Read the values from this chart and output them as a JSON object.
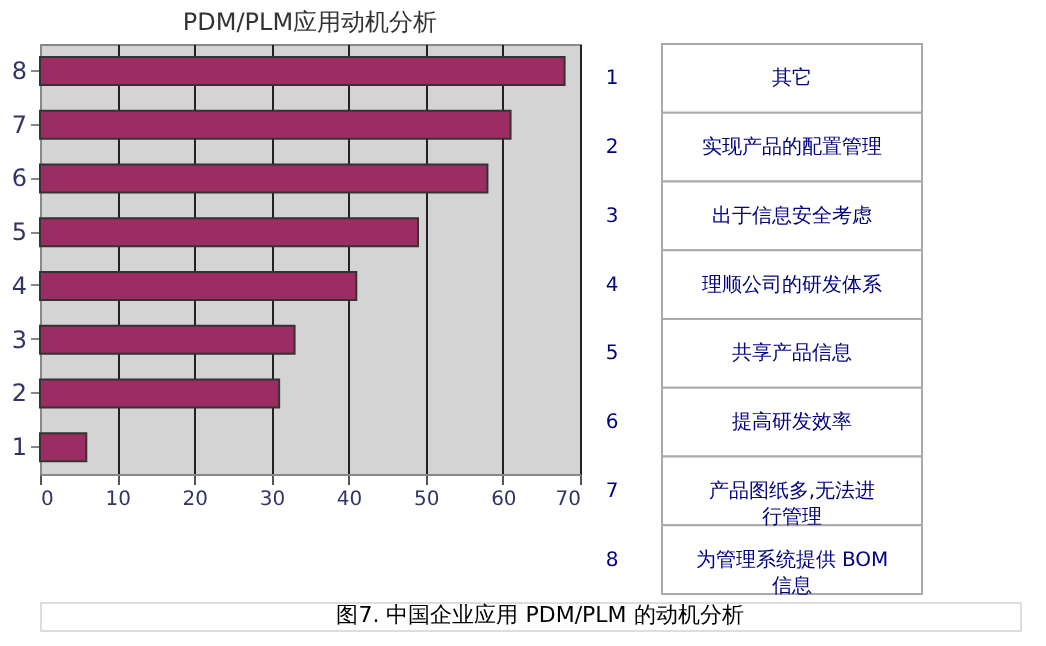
{
  "chart_data": {
    "type": "bar",
    "orientation": "horizontal",
    "title": "PDM/PLM应用动机分析",
    "categories": [
      "8",
      "7",
      "6",
      "5",
      "4",
      "3",
      "2",
      "1"
    ],
    "values": [
      68,
      61,
      58,
      49,
      41,
      33,
      31,
      6
    ],
    "color": "#9b2d63",
    "xlim": [
      0,
      70
    ],
    "xticks": [
      0,
      10,
      20,
      30,
      40,
      50,
      60,
      70
    ],
    "grid": "x",
    "annotations": [
      "其它",
      "实现产品的配置管理",
      "出于信息安全考虑",
      "理顺公司的研发体系",
      "共享产品信息",
      "提高研发效率",
      "产品图纸多,无法进行管理",
      "为管理系统提供 BOM 信息",
      "图7. 中国企业应用 PDM/PLM 的动机分析"
    ]
  }
}
